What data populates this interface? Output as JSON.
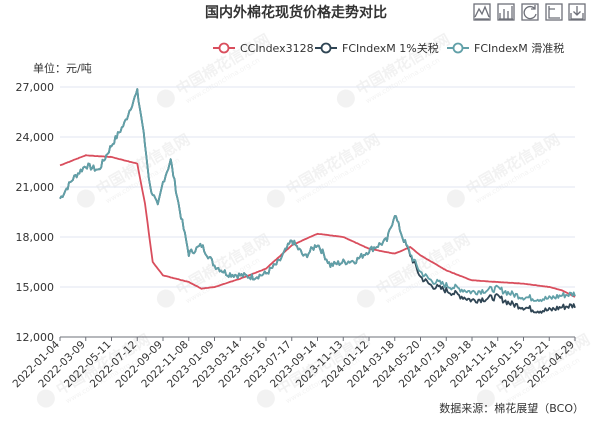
{
  "chart_data": {
    "type": "line",
    "title": "国内外棉花现货价格走势对比",
    "unit_label": "单位：元/吨",
    "source": "数据来源：棉花展望（BCO）",
    "watermark": "中国棉花信息网",
    "watermark_url": "www.cottonchina.org.cn",
    "x_ticks": [
      "2022-01-04",
      "2022-03-09",
      "2022-05-11",
      "2022-07-12",
      "2022-09-09",
      "2022-11-08",
      "2023-01-09",
      "2023-03-14",
      "2023-05-16",
      "2023-07-17",
      "2023-09-14",
      "2023-11-13",
      "2024-01-12",
      "2024-03-18",
      "2024-05-20",
      "2024-07-19",
      "2024-09-18",
      "2024-11-14",
      "2025-01-15",
      "2025-03-21",
      "2025-04-29"
    ],
    "y_ticks": [
      "12,000",
      "15,000",
      "18,000",
      "21,000",
      "24,000",
      "27,000"
    ],
    "ylim": [
      12000,
      27000
    ],
    "grid": true,
    "legend_position": "top-right",
    "series": [
      {
        "name": "CCIndex3128",
        "color": "#d94e5d",
        "points": [
          [
            0,
            22300
          ],
          [
            1,
            22900
          ],
          [
            2,
            22800
          ],
          [
            3,
            22400
          ],
          [
            3.3,
            20000
          ],
          [
            3.6,
            16500
          ],
          [
            4,
            15700
          ],
          [
            5,
            15300
          ],
          [
            5.5,
            14900
          ],
          [
            6,
            15000
          ],
          [
            7,
            15500
          ],
          [
            8,
            16100
          ],
          [
            9,
            17500
          ],
          [
            10,
            18200
          ],
          [
            11,
            18000
          ],
          [
            12,
            17300
          ],
          [
            13,
            17000
          ],
          [
            13.6,
            17400
          ],
          [
            14,
            16900
          ],
          [
            15,
            16000
          ],
          [
            16,
            15400
          ],
          [
            17,
            15300
          ],
          [
            18,
            15200
          ],
          [
            19,
            15000
          ],
          [
            19.5,
            14800
          ],
          [
            20,
            14400
          ]
        ]
      },
      {
        "name": "FCIndexM 1%关税",
        "color": "#2f4554",
        "points": [
          [
            0,
            20300
          ],
          [
            0.5,
            21500
          ],
          [
            1,
            22300
          ],
          [
            1.5,
            22000
          ],
          [
            2,
            23500
          ],
          [
            2.5,
            24800
          ],
          [
            2.8,
            26000
          ],
          [
            3,
            26700
          ],
          [
            3.2,
            24800
          ],
          [
            3.5,
            21000
          ],
          [
            3.8,
            19800
          ],
          [
            4,
            21300
          ],
          [
            4.3,
            22600
          ],
          [
            4.6,
            20000
          ],
          [
            5,
            17000
          ],
          [
            5.5,
            17500
          ],
          [
            6,
            16300
          ],
          [
            6.5,
            15800
          ],
          [
            7,
            15700
          ],
          [
            7.5,
            15600
          ],
          [
            8,
            15800
          ],
          [
            8.5,
            16500
          ],
          [
            9,
            17800
          ],
          [
            9.5,
            16800
          ],
          [
            10,
            17600
          ],
          [
            10.5,
            16300
          ],
          [
            11,
            16500
          ],
          [
            11.5,
            16600
          ],
          [
            12,
            17200
          ],
          [
            12.7,
            17800
          ],
          [
            13,
            19400
          ],
          [
            13.3,
            18000
          ],
          [
            13.7,
            16600
          ],
          [
            14,
            15600
          ],
          [
            14.4,
            15100
          ],
          [
            15,
            14800
          ],
          [
            15.5,
            14500
          ],
          [
            16,
            14200
          ],
          [
            16.5,
            14300
          ],
          [
            17,
            14400
          ],
          [
            17.5,
            14000
          ],
          [
            18,
            13800
          ],
          [
            18.5,
            13600
          ],
          [
            19,
            13600
          ],
          [
            19.5,
            13800
          ],
          [
            20,
            13900
          ]
        ]
      },
      {
        "name": "FCIndexM 滑准税",
        "color": "#61a0a8",
        "points": [
          [
            0,
            20300
          ],
          [
            0.5,
            21500
          ],
          [
            1,
            22300
          ],
          [
            1.5,
            22000
          ],
          [
            2,
            23500
          ],
          [
            2.5,
            24800
          ],
          [
            2.8,
            26000
          ],
          [
            3,
            26700
          ],
          [
            3.2,
            24800
          ],
          [
            3.5,
            21000
          ],
          [
            3.8,
            19800
          ],
          [
            4,
            21300
          ],
          [
            4.3,
            22600
          ],
          [
            4.6,
            20000
          ],
          [
            5,
            17000
          ],
          [
            5.5,
            17500
          ],
          [
            6,
            16300
          ],
          [
            6.5,
            15800
          ],
          [
            7,
            15700
          ],
          [
            7.5,
            15600
          ],
          [
            8,
            15800
          ],
          [
            8.5,
            16500
          ],
          [
            9,
            17800
          ],
          [
            9.5,
            16800
          ],
          [
            10,
            17600
          ],
          [
            10.5,
            16300
          ],
          [
            11,
            16500
          ],
          [
            11.5,
            16600
          ],
          [
            12,
            17200
          ],
          [
            12.7,
            17800
          ],
          [
            13,
            19400
          ],
          [
            13.3,
            18000
          ],
          [
            13.7,
            16700
          ],
          [
            14,
            15900
          ],
          [
            14.4,
            15400
          ],
          [
            15,
            15100
          ],
          [
            15.5,
            14900
          ],
          [
            16,
            14700
          ],
          [
            16.5,
            14800
          ],
          [
            17,
            14900
          ],
          [
            17.5,
            14600
          ],
          [
            18,
            14400
          ],
          [
            18.5,
            14300
          ],
          [
            19,
            14300
          ],
          [
            19.5,
            14500
          ],
          [
            20,
            14600
          ]
        ]
      }
    ]
  }
}
